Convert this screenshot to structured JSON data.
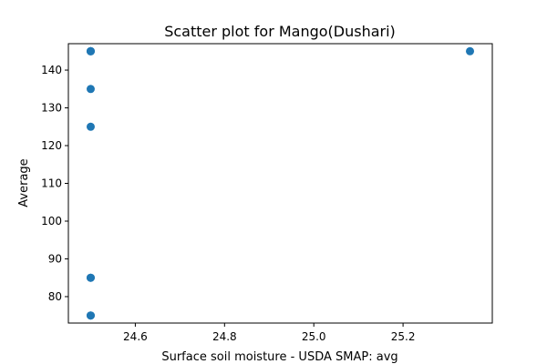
{
  "chart_data": {
    "type": "scatter",
    "title": "Scatter plot for Mango(Dushari)",
    "xlabel": "Surface soil moisture - USDA SMAP: avg",
    "ylabel": "Average",
    "xlim": [
      24.45,
      25.4
    ],
    "ylim": [
      73,
      147
    ],
    "x_ticks": [
      24.6,
      24.8,
      25.0,
      25.2
    ],
    "x_tick_labels": [
      "24.6",
      "24.8",
      "25.0",
      "25.2"
    ],
    "y_ticks": [
      80,
      90,
      100,
      110,
      120,
      130,
      140
    ],
    "y_tick_labels": [
      "80",
      "90",
      "100",
      "110",
      "120",
      "130",
      "140"
    ],
    "grid": false,
    "color": "#1f77b4",
    "points": [
      {
        "x": 24.5,
        "y": 145
      },
      {
        "x": 24.5,
        "y": 145
      },
      {
        "x": 24.5,
        "y": 145
      },
      {
        "x": 24.5,
        "y": 135
      },
      {
        "x": 24.5,
        "y": 125
      },
      {
        "x": 24.5,
        "y": 85
      },
      {
        "x": 24.5,
        "y": 85
      },
      {
        "x": 24.5,
        "y": 75
      },
      {
        "x": 24.5,
        "y": 75
      },
      {
        "x": 25.35,
        "y": 145
      }
    ]
  }
}
